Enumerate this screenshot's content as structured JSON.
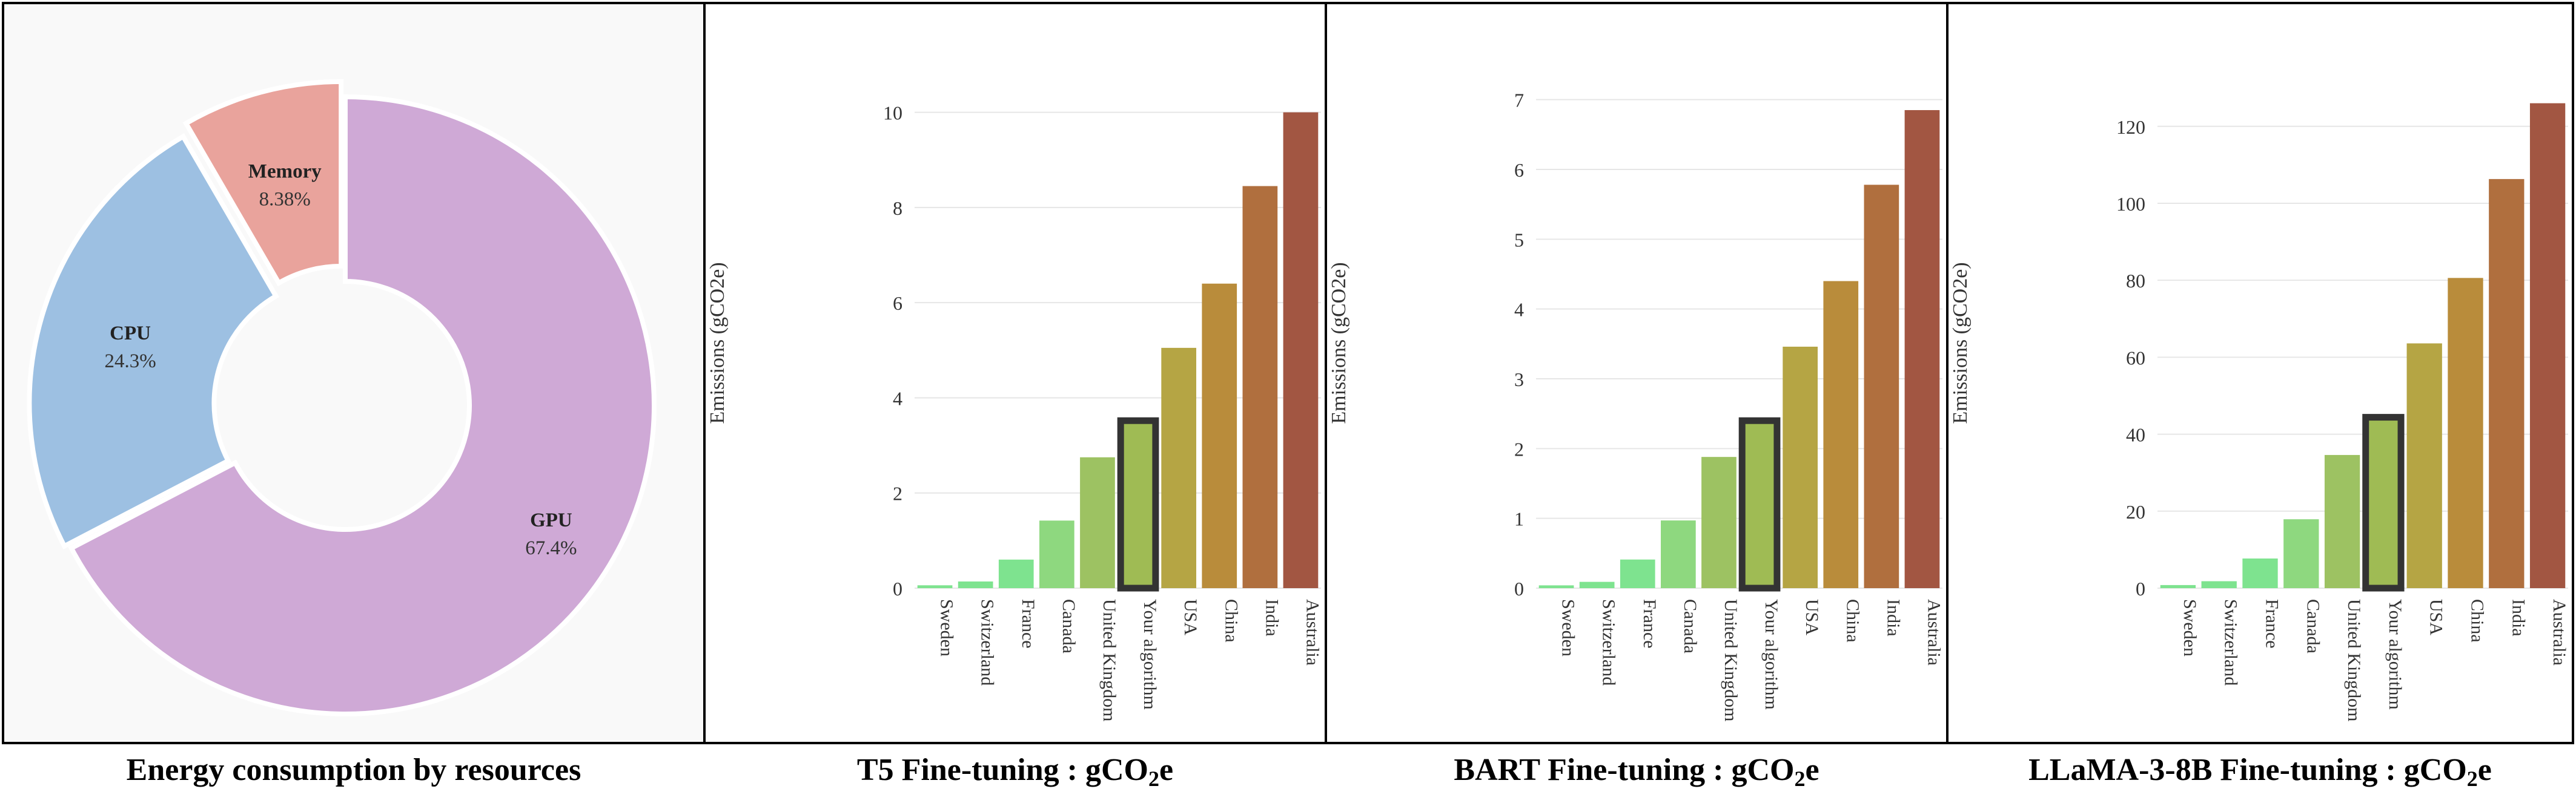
{
  "chart_data": [
    {
      "type": "pie",
      "title": "Energy consumption by resources",
      "categories": [
        "GPU",
        "CPU",
        "Memory"
      ],
      "values": [
        67.4,
        24.3,
        8.38
      ],
      "value_labels": [
        "67.4%",
        "24.3%",
        "8.38%"
      ],
      "colors": [
        "#cfa9d6",
        "#9dc0e2",
        "#e9a39c"
      ]
    },
    {
      "type": "bar",
      "title_main": "T5 Fine-tuning : gCO",
      "title_sub": "2",
      "title_tail": "e",
      "ylabel": "Emissions (gCO2e)",
      "categories": [
        "Sweden",
        "Switzerland",
        "France",
        "Canada",
        "United Kingdom",
        "Your algorithm",
        "USA",
        "China",
        "India",
        "Australia"
      ],
      "values": [
        0.06,
        0.14,
        0.6,
        1.42,
        2.75,
        3.52,
        5.05,
        6.4,
        8.45,
        10.0
      ],
      "ylim": [
        0,
        11
      ],
      "yticks": [
        0,
        2,
        4,
        6,
        8,
        10
      ],
      "highlight": "Your algorithm",
      "grid": true
    },
    {
      "type": "bar",
      "title_main": "BART Fine-tuning : gCO",
      "title_sub": "2",
      "title_tail": "e",
      "ylabel": "Emissions (gCO2e)",
      "categories": [
        "Sweden",
        "Switzerland",
        "France",
        "Canada",
        "United Kingdom",
        "Your algorithm",
        "USA",
        "China",
        "India",
        "Australia"
      ],
      "values": [
        0.04,
        0.09,
        0.41,
        0.97,
        1.88,
        2.4,
        3.46,
        4.4,
        5.78,
        6.85
      ],
      "ylim": [
        0,
        7.5
      ],
      "yticks": [
        0,
        1,
        2,
        3,
        4,
        5,
        6,
        7
      ],
      "highlight": "Your algorithm",
      "grid": true
    },
    {
      "type": "bar",
      "title_main": "LLaMA-3-8B Fine-tuning : gCO",
      "title_sub": "2",
      "title_tail": "e",
      "ylabel": "Emissions (gCO2e)",
      "categories": [
        "Sweden",
        "Switzerland",
        "France",
        "Canada",
        "United Kingdom",
        "Your algorithm",
        "USA",
        "China",
        "India",
        "Australia"
      ],
      "values": [
        0.8,
        1.8,
        7.7,
        17.9,
        34.6,
        44.4,
        63.6,
        80.6,
        106.3,
        126.0
      ],
      "ylim": [
        0,
        136
      ],
      "yticks": [
        0,
        20,
        40,
        60,
        80,
        100,
        120
      ],
      "highlight": "Your algorithm",
      "grid": true
    }
  ],
  "bar_colors": [
    "#7ee38f",
    "#7ee38f",
    "#7ee38f",
    "#8ed87f",
    "#9dc262",
    "#9fbb54",
    "#b5a544",
    "#b98c3b",
    "#b06f3e",
    "#a25642"
  ]
}
